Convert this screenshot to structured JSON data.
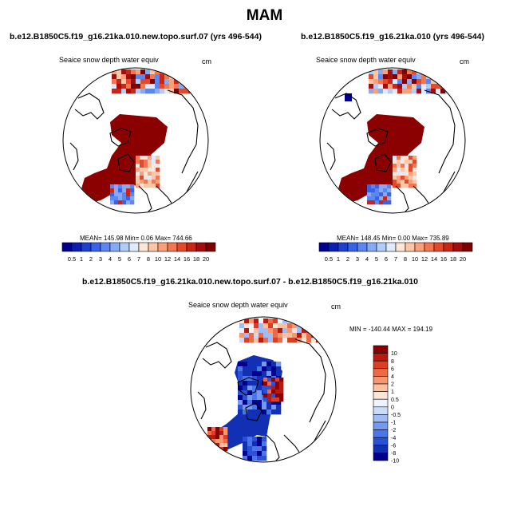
{
  "figure_title": "MAM",
  "colors": {
    "abs_scale": [
      "#00008f",
      "#0a1fb0",
      "#1f3fcf",
      "#3a62e6",
      "#5d86f0",
      "#87aaf5",
      "#b2ccf8",
      "#dfeafb",
      "#fde6d8",
      "#fbc5a7",
      "#f8a07a",
      "#f27651",
      "#e34a2c",
      "#c92618",
      "#a40d0c",
      "#7f0000"
    ],
    "diff_scale": [
      "#00008f",
      "#1230b3",
      "#2b52d6",
      "#4b76ea",
      "#7499f2",
      "#9fbcf6",
      "#cbdcfa",
      "#eef3fd",
      "#fde5d6",
      "#fbc0a0",
      "#f79770",
      "#ef6945",
      "#db3e22",
      "#b71a10",
      "#8a0000"
    ],
    "land_line": "#000000",
    "dark_red": "#8b0000",
    "dark_blue": "#00008f"
  },
  "panels": {
    "topo": {
      "run_title": "b.e12.B1850C5.f19_g16.21ka.010.new.topo.surf.07 (yrs 496-544)",
      "var_title": "Seaice snow depth water equiv",
      "units": "cm",
      "stats": "MEAN= 145.98  Min=   0.06  Max= 744.66",
      "colorbar_labels": [
        "0.5",
        "1",
        "2",
        "3",
        "4",
        "5",
        "6",
        "7",
        "8",
        "10",
        "12",
        "14",
        "16",
        "18",
        "20"
      ]
    },
    "ctrl": {
      "run_title": "b.e12.B1850C5.f19_g16.21ka.010 (yrs 496-544)",
      "var_title": "Seaice snow depth water equiv",
      "units": "cm",
      "stats": "MEAN= 148.45  Min=   0.00  Max= 735.89",
      "colorbar_labels": [
        "0.5",
        "1",
        "2",
        "3",
        "4",
        "5",
        "6",
        "7",
        "8",
        "10",
        "12",
        "14",
        "16",
        "18",
        "20"
      ]
    },
    "diff": {
      "run_title": "b.e12.B1850C5.f19_g16.21ka.010.new.topo.surf.07 - b.e12.B1850C5.f19_g16.21ka.010",
      "var_title": "Seaice snow depth water equiv",
      "units": "cm",
      "stats": "MIN = -140.44 MAX = 194.19",
      "colorbar_labels": [
        "10",
        "8",
        "6",
        "4",
        "2",
        "1",
        "0.5",
        "0",
        "-0.5",
        "-1",
        "-2",
        "-4",
        "-6",
        "-8",
        "-10"
      ]
    }
  }
}
